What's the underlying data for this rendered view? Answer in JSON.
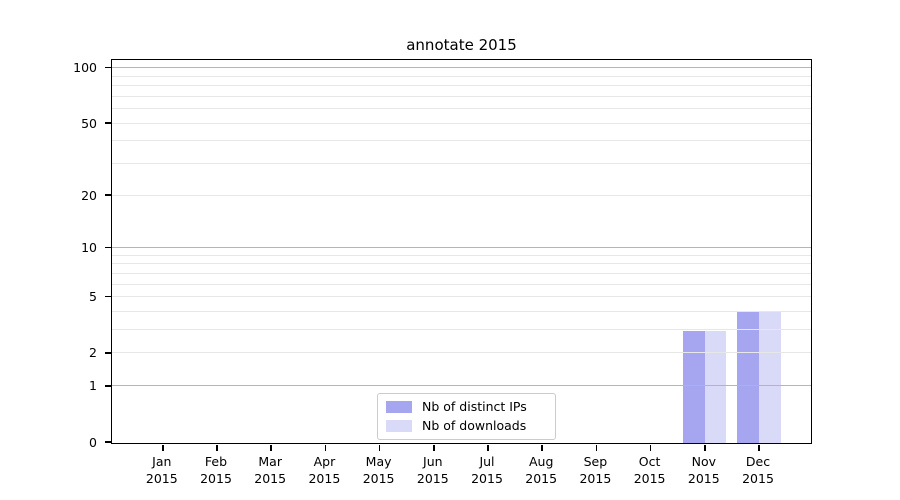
{
  "title": "annotate 2015",
  "chart_data": {
    "type": "bar",
    "title": "annotate 2015",
    "categories": [
      "Jan",
      "Feb",
      "Mar",
      "Apr",
      "May",
      "Jun",
      "Jul",
      "Aug",
      "Sep",
      "Oct",
      "Nov",
      "Dec"
    ],
    "x_tick_line2": "2015",
    "series": [
      {
        "name": "Nb of distinct IPs",
        "color": "#a6a6f0",
        "values": [
          0,
          0,
          0,
          0,
          0,
          0,
          0,
          0,
          0,
          0,
          3,
          4
        ]
      },
      {
        "name": "Nb of downloads",
        "color": "#d9d9f8",
        "values": [
          0,
          0,
          0,
          0,
          0,
          0,
          0,
          0,
          0,
          0,
          3,
          4
        ]
      }
    ],
    "yscale": "log1p",
    "ylim": [
      0,
      110
    ],
    "y_tick_values": [
      100,
      50,
      20,
      10,
      5,
      2,
      1,
      0
    ],
    "y_major_grid": [
      1,
      10,
      100
    ],
    "y_minor_grid": [
      2,
      3,
      4,
      5,
      6,
      7,
      8,
      9,
      20,
      30,
      40,
      50,
      60,
      70,
      80,
      90
    ],
    "grid": true,
    "legend_position": "lower center",
    "colors": {
      "axis": "#000000",
      "major_grid": "#b5b5b5",
      "minor_grid": "#e7e7e7",
      "legend_border": "#cbcbcb",
      "background": "#ffffff"
    }
  }
}
